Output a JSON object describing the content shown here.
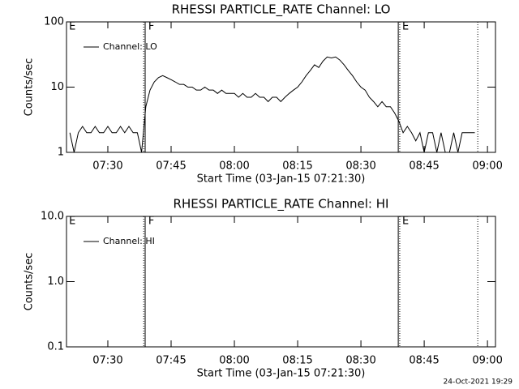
{
  "chart_data": [
    {
      "type": "line",
      "title": "RHESSI PARTICLE_RATE Channel: LO",
      "xlabel": "Start Time (03-Jan-15 07:21:30)",
      "ylabel": "Counts/sec",
      "ylog": true,
      "color": "#000000",
      "xlim": [
        20.2,
        121.9
      ],
      "ylim": [
        1,
        100
      ],
      "xticks": [
        {
          "value": 30,
          "label": "07:30"
        },
        {
          "value": 45,
          "label": "07:45"
        },
        {
          "value": 60,
          "label": "08:00"
        },
        {
          "value": 75,
          "label": "08:15"
        },
        {
          "value": 90,
          "label": "08:30"
        },
        {
          "value": 105,
          "label": "08:45"
        },
        {
          "value": 120,
          "label": "09:00"
        }
      ],
      "yticks": [
        1,
        10,
        100
      ],
      "vlines": [
        {
          "x": 38.5,
          "dotted": true
        },
        {
          "x": 38.85,
          "dotted": false
        },
        {
          "x": 98.85,
          "dotted": false
        },
        {
          "x": 99.2,
          "dotted": true
        },
        {
          "x": 117.7,
          "dotted": true
        }
      ],
      "annotations": [
        {
          "text": "E",
          "x": 20.8
        },
        {
          "text": "F",
          "x": 39.6
        },
        {
          "text": "E",
          "x": 99.8
        }
      ],
      "x": [
        21,
        22,
        23,
        24,
        25,
        26,
        27,
        28,
        29,
        30,
        31,
        32,
        33,
        34,
        35,
        36,
        37,
        38,
        39,
        40,
        41,
        42,
        43,
        44,
        45,
        46,
        47,
        48,
        49,
        50,
        51,
        52,
        53,
        54,
        55,
        56,
        57,
        58,
        59,
        60,
        61,
        62,
        63,
        64,
        65,
        66,
        67,
        68,
        69,
        70,
        71,
        72,
        73,
        74,
        75,
        76,
        77,
        78,
        79,
        80,
        81,
        82,
        83,
        84,
        85,
        86,
        87,
        88,
        89,
        90,
        91,
        92,
        93,
        94,
        95,
        96,
        97,
        98,
        99,
        100,
        101,
        102,
        103,
        104,
        105,
        106,
        107,
        108,
        109,
        110,
        111,
        112,
        113,
        114,
        115,
        116,
        117
      ],
      "series": [
        {
          "name": "Channel: LO",
          "values": [
            2,
            1,
            2,
            2.5,
            2,
            2,
            2.5,
            2,
            2,
            2.5,
            2,
            2,
            2.5,
            2,
            2.5,
            2,
            2,
            1,
            5,
            9,
            12,
            14,
            15,
            14,
            13,
            12,
            11,
            11,
            10,
            10,
            9,
            9,
            10,
            9,
            9,
            8,
            9,
            8,
            8,
            8,
            7,
            8,
            7,
            7,
            8,
            7,
            7,
            6,
            7,
            7,
            6,
            7,
            8,
            9,
            10,
            12,
            15,
            18,
            22,
            20,
            25,
            29,
            28,
            29,
            26,
            22,
            18,
            15,
            12,
            10,
            9,
            7,
            6,
            5,
            6,
            5,
            5,
            4,
            3,
            2,
            2.5,
            2,
            1.5,
            2,
            1,
            2,
            2,
            1,
            2,
            1,
            1,
            2,
            1,
            2,
            2,
            2,
            2
          ]
        }
      ]
    },
    {
      "type": "line",
      "title": "RHESSI PARTICLE_RATE Channel: HI",
      "xlabel": "Start Time (03-Jan-15 07:21:30)",
      "ylabel": "Counts/sec",
      "ylog": true,
      "color": "#000000",
      "xlim": [
        20.2,
        121.9
      ],
      "ylim": [
        0.1,
        10
      ],
      "xticks": [
        {
          "value": 30,
          "label": "07:30"
        },
        {
          "value": 45,
          "label": "07:45"
        },
        {
          "value": 60,
          "label": "08:00"
        },
        {
          "value": 75,
          "label": "08:15"
        },
        {
          "value": 90,
          "label": "08:30"
        },
        {
          "value": 105,
          "label": "08:45"
        },
        {
          "value": 120,
          "label": "09:00"
        }
      ],
      "yticks": [
        0.1,
        {
          "value": 1,
          "label": "1.0"
        },
        {
          "value": 10,
          "label": "10.0"
        }
      ],
      "vlines": [
        {
          "x": 38.5,
          "dotted": true
        },
        {
          "x": 38.85,
          "dotted": false
        },
        {
          "x": 98.85,
          "dotted": false
        },
        {
          "x": 99.2,
          "dotted": true
        },
        {
          "x": 117.7,
          "dotted": true
        }
      ],
      "annotations": [
        {
          "text": "E",
          "x": 20.8
        },
        {
          "text": "F",
          "x": 39.6
        },
        {
          "text": "E",
          "x": 99.8
        }
      ],
      "series": [
        {
          "name": "Channel: HI",
          "values": []
        }
      ]
    }
  ],
  "footer": "24-Oct-2021 19:29"
}
